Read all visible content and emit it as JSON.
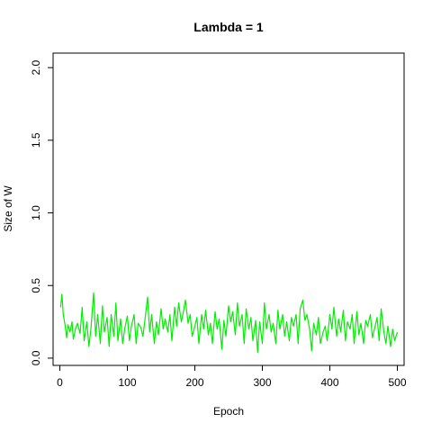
{
  "chart_data": {
    "type": "line",
    "title": "Lambda =  1",
    "xlabel": "Epoch",
    "ylabel": "Size of W",
    "xlim": [
      -10,
      510
    ],
    "ylim": [
      -0.05,
      2.1
    ],
    "x_ticks": [
      0,
      100,
      200,
      300,
      400,
      500
    ],
    "x_tick_labels": [
      "0",
      "100",
      "200",
      "300",
      "400",
      "500"
    ],
    "y_ticks": [
      0.0,
      0.5,
      1.0,
      1.5,
      2.0
    ],
    "y_tick_labels": [
      "0.0",
      "0.5",
      "1.0",
      "1.5",
      "2.0"
    ],
    "grid": false,
    "series": [
      {
        "color": "#00ee00",
        "x": [
          1,
          3,
          5,
          8,
          10,
          12,
          15,
          18,
          20,
          23,
          26,
          30,
          33,
          36,
          40,
          43,
          46,
          50,
          53,
          56,
          60,
          63,
          66,
          70,
          73,
          76,
          80,
          83,
          86,
          90,
          93,
          96,
          100,
          103,
          106,
          110,
          113,
          116,
          120,
          123,
          126,
          130,
          133,
          136,
          140,
          143,
          146,
          150,
          153,
          156,
          160,
          163,
          166,
          170,
          173,
          176,
          180,
          183,
          186,
          190,
          193,
          196,
          200,
          203,
          206,
          210,
          213,
          216,
          220,
          223,
          226,
          230,
          233,
          236,
          240,
          243,
          246,
          250,
          253,
          256,
          260,
          263,
          266,
          270,
          273,
          276,
          280,
          283,
          286,
          290,
          293,
          296,
          300,
          303,
          306,
          310,
          313,
          316,
          320,
          323,
          326,
          330,
          333,
          336,
          340,
          343,
          346,
          350,
          353,
          356,
          360,
          363,
          366,
          370,
          373,
          376,
          380,
          383,
          386,
          390,
          393,
          396,
          400,
          403,
          406,
          410,
          413,
          416,
          420,
          423,
          426,
          430,
          433,
          436,
          440,
          443,
          446,
          450,
          453,
          456,
          460,
          463,
          466,
          470,
          473,
          476,
          480,
          483,
          486,
          490,
          493,
          496,
          500
        ],
        "y": [
          0.35,
          0.44,
          0.3,
          0.22,
          0.14,
          0.23,
          0.18,
          0.25,
          0.13,
          0.2,
          0.24,
          0.17,
          0.35,
          0.12,
          0.25,
          0.08,
          0.2,
          0.45,
          0.15,
          0.3,
          0.1,
          0.36,
          0.18,
          0.28,
          0.08,
          0.3,
          0.15,
          0.38,
          0.12,
          0.27,
          0.1,
          0.2,
          0.29,
          0.12,
          0.22,
          0.3,
          0.1,
          0.24,
          0.21,
          0.15,
          0.26,
          0.42,
          0.18,
          0.3,
          0.1,
          0.25,
          0.16,
          0.34,
          0.2,
          0.27,
          0.18,
          0.3,
          0.12,
          0.35,
          0.22,
          0.38,
          0.25,
          0.32,
          0.4,
          0.24,
          0.3,
          0.15,
          0.22,
          0.28,
          0.1,
          0.3,
          0.2,
          0.33,
          0.16,
          0.24,
          0.1,
          0.32,
          0.2,
          0.27,
          0.06,
          0.26,
          0.15,
          0.36,
          0.25,
          0.32,
          0.16,
          0.38,
          0.22,
          0.3,
          0.1,
          0.34,
          0.2,
          0.28,
          0.12,
          0.26,
          0.04,
          0.25,
          0.1,
          0.38,
          0.2,
          0.3,
          0.18,
          0.24,
          0.1,
          0.33,
          0.2,
          0.3,
          0.15,
          0.25,
          0.12,
          0.28,
          0.22,
          0.3,
          0.1,
          0.34,
          0.4,
          0.26,
          0.3,
          0.2,
          0.05,
          0.24,
          0.16,
          0.28,
          0.1,
          0.18,
          0.22,
          0.12,
          0.3,
          0.2,
          0.35,
          0.15,
          0.27,
          0.18,
          0.33,
          0.12,
          0.25,
          0.2,
          0.3,
          0.1,
          0.32,
          0.16,
          0.24,
          0.1,
          0.26,
          0.22,
          0.3,
          0.14,
          0.2,
          0.28,
          0.12,
          0.34,
          0.18,
          0.1,
          0.22,
          0.08,
          0.2,
          0.12,
          0.18
        ]
      }
    ]
  }
}
